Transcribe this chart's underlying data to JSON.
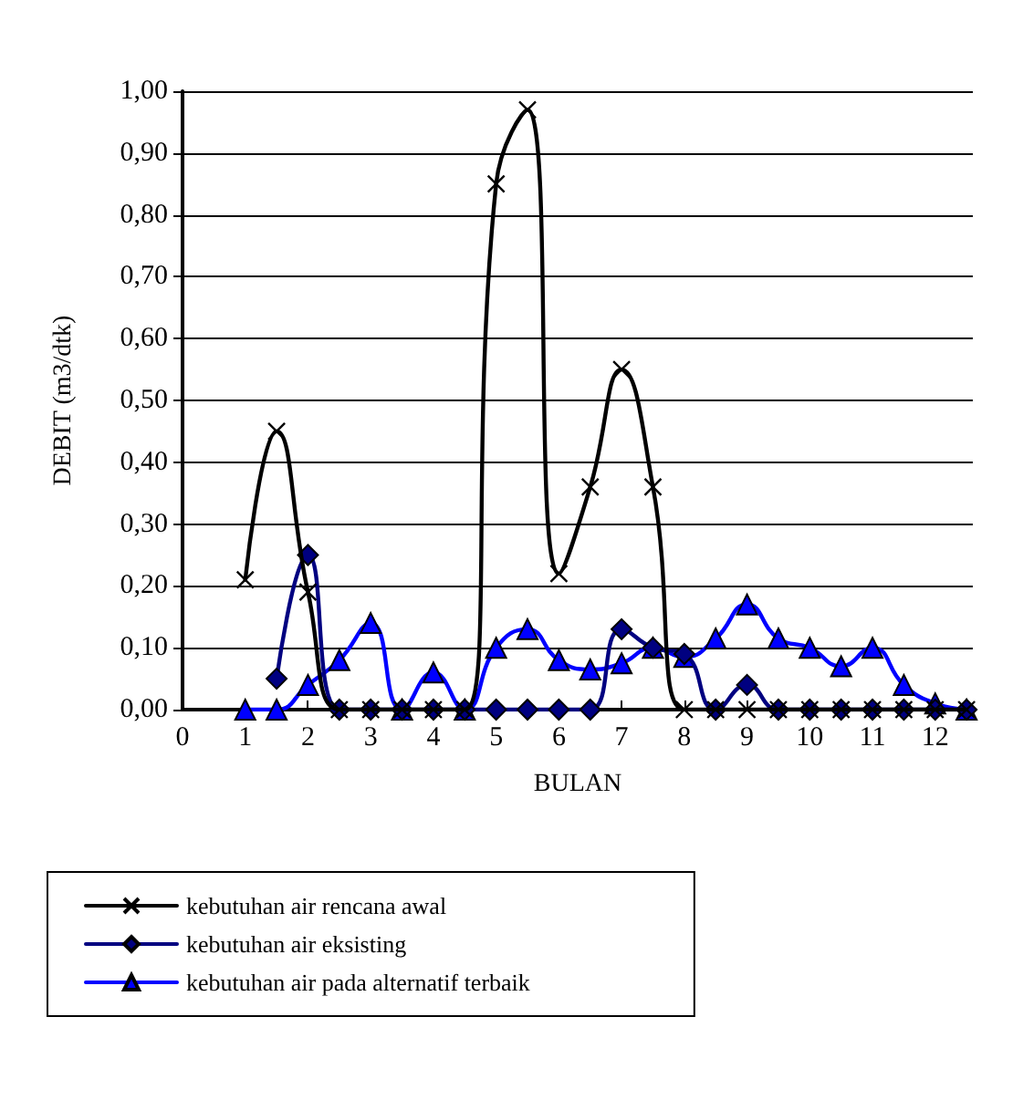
{
  "chart_data": {
    "type": "line",
    "xlabel": "BULAN",
    "ylabel": "DEBIT (m3/dtk)",
    "x": [
      1,
      1.5,
      2,
      2.5,
      3,
      3.5,
      4,
      4.5,
      5,
      5.5,
      6,
      6.5,
      7,
      7.5,
      8,
      8.5,
      9,
      9.5,
      10,
      10.5,
      11,
      11.5,
      12,
      12.5
    ],
    "series": [
      {
        "name": "kebutuhan air rencana awal",
        "color": "#000000",
        "marker": "cross",
        "values": [
          0.21,
          0.45,
          0.19,
          0,
          0,
          0,
          0,
          0,
          0.85,
          0.97,
          0.22,
          0.36,
          0.55,
          0.36,
          0,
          0,
          0,
          0,
          0,
          0,
          0,
          0,
          0,
          0
        ]
      },
      {
        "name": "kebutuhan air eksisting",
        "color": "#000080",
        "marker": "diamond",
        "values": [
          null,
          0.05,
          0.25,
          0,
          0,
          0,
          0,
          0,
          0,
          0,
          0,
          0,
          0.13,
          0.1,
          0.09,
          0,
          0.04,
          0,
          0,
          0,
          0,
          0,
          0,
          0
        ]
      },
      {
        "name": "kebutuhan air pada alternatif terbaik",
        "color": "#0000ff",
        "marker": "triangle",
        "values": [
          0,
          0,
          0.04,
          0.08,
          0.14,
          0,
          0.06,
          0,
          0.1,
          0.13,
          0.08,
          0.065,
          0.075,
          0.1,
          0.085,
          0.115,
          0.17,
          0.115,
          0.1,
          0.07,
          0.1,
          0.04,
          0.01,
          0
        ]
      }
    ],
    "xlim": [
      0,
      12.6
    ],
    "xticks": [
      0,
      1,
      2,
      3,
      4,
      5,
      6,
      7,
      8,
      9,
      10,
      11,
      12
    ],
    "ylim": [
      0,
      1
    ],
    "yticks": [
      {
        "value": 0,
        "label": "0,00"
      },
      {
        "value": 0.1,
        "label": "0,10"
      },
      {
        "value": 0.2,
        "label": "0,20"
      },
      {
        "value": 0.3,
        "label": "0,30"
      },
      {
        "value": 0.4,
        "label": "0,40"
      },
      {
        "value": 0.5,
        "label": "0,50"
      },
      {
        "value": 0.6,
        "label": "0,60"
      },
      {
        "value": 0.7,
        "label": "0,70"
      },
      {
        "value": 0.8,
        "label": "0,80"
      },
      {
        "value": 0.9,
        "label": "0,90"
      },
      {
        "value": 1,
        "label": "1,00"
      }
    ],
    "grid": "y",
    "legend": "bottom",
    "line_style": "solid"
  }
}
